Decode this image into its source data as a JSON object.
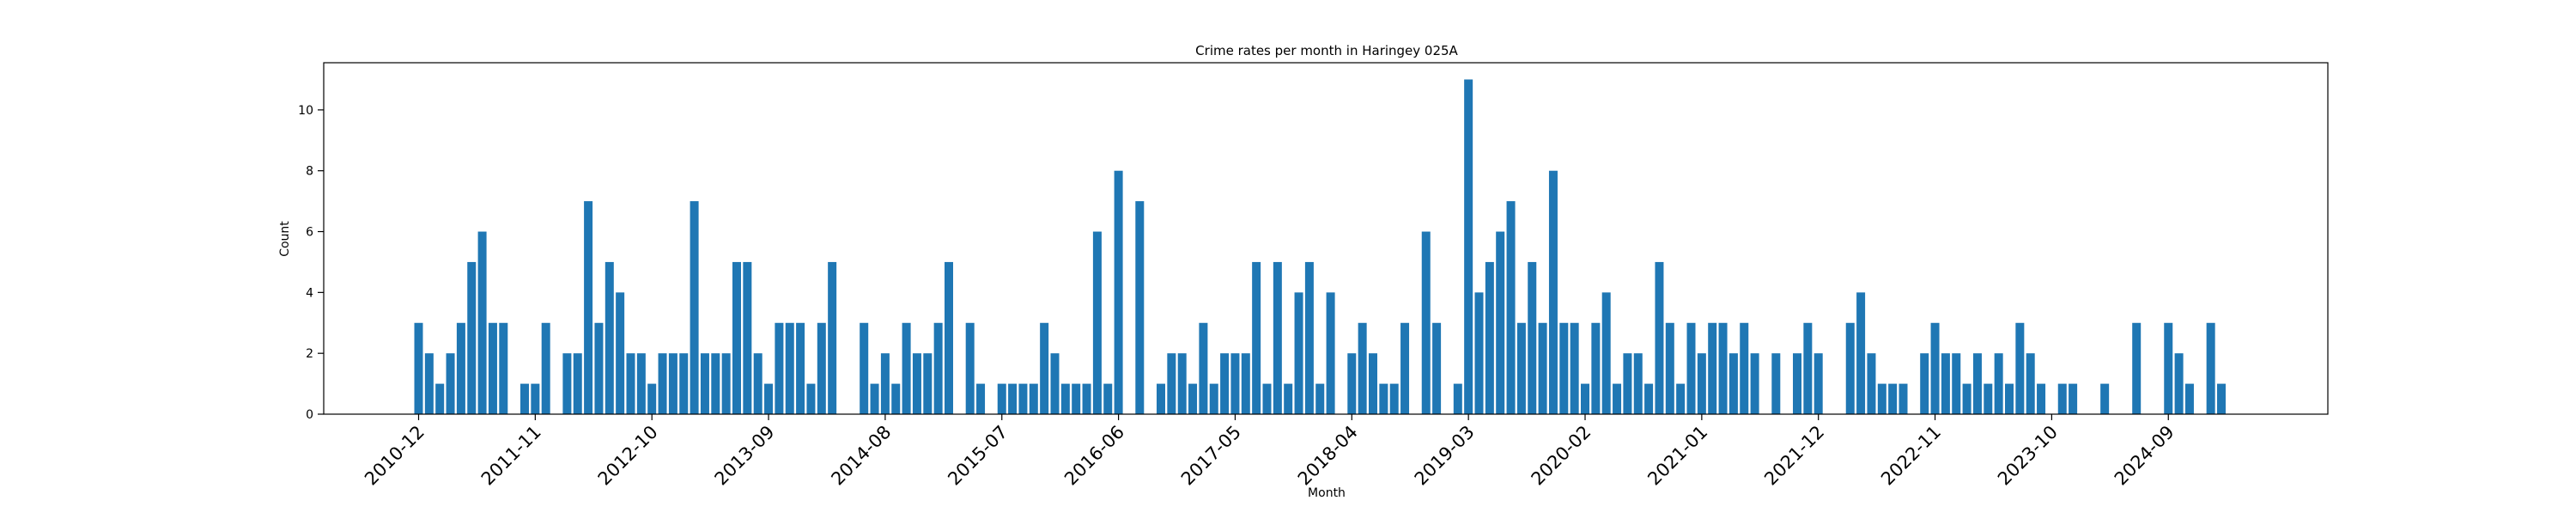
{
  "chart_data": {
    "type": "bar",
    "title": "Crime rates per month in Haringey 025A",
    "xlabel": "Month",
    "ylabel": "Count",
    "ylim": [
      0,
      11.55
    ],
    "yticks": [
      0,
      2,
      4,
      6,
      8,
      10
    ],
    "grid": false,
    "legend": "none",
    "bar_color": "#1f77b4",
    "xtick_labels": [
      {
        "category_index": 0,
        "label": "2010-12"
      },
      {
        "category_index": 11,
        "label": "2011-11"
      },
      {
        "category_index": 22,
        "label": "2012-10"
      },
      {
        "category_index": 33,
        "label": "2013-09"
      },
      {
        "category_index": 44,
        "label": "2014-08"
      },
      {
        "category_index": 55,
        "label": "2015-07"
      },
      {
        "category_index": 66,
        "label": "2016-06"
      },
      {
        "category_index": 77,
        "label": "2017-05"
      },
      {
        "category_index": 88,
        "label": "2018-04"
      },
      {
        "category_index": 99,
        "label": "2019-03"
      },
      {
        "category_index": 110,
        "label": "2020-02"
      },
      {
        "category_index": 121,
        "label": "2021-01"
      },
      {
        "category_index": 132,
        "label": "2021-12"
      },
      {
        "category_index": 143,
        "label": "2022-11"
      },
      {
        "category_index": 154,
        "label": "2023-10"
      },
      {
        "category_index": 165,
        "label": "2024-09"
      }
    ],
    "categories": [
      "2010-12",
      "2011-01",
      "2011-02",
      "2011-03",
      "2011-04",
      "2011-05",
      "2011-06",
      "2011-07",
      "2011-08",
      "2011-09",
      "2011-10",
      "2011-11",
      "2011-12",
      "2012-01",
      "2012-02",
      "2012-03",
      "2012-04",
      "2012-05",
      "2012-06",
      "2012-07",
      "2012-08",
      "2012-09",
      "2012-10",
      "2012-11",
      "2012-12",
      "2013-01",
      "2013-02",
      "2013-03",
      "2013-04",
      "2013-05",
      "2013-06",
      "2013-07",
      "2013-08",
      "2013-09",
      "2013-10",
      "2013-11",
      "2013-12",
      "2014-01",
      "2014-02",
      "2014-03",
      "2014-04",
      "2014-05",
      "2014-06",
      "2014-07",
      "2014-08",
      "2014-09",
      "2014-10",
      "2014-11",
      "2014-12",
      "2015-01",
      "2015-02",
      "2015-03",
      "2015-04",
      "2015-05",
      "2015-06",
      "2015-07",
      "2015-08",
      "2015-09",
      "2015-10",
      "2015-11",
      "2015-12",
      "2016-01",
      "2016-02",
      "2016-03",
      "2016-04",
      "2016-05",
      "2016-06",
      "2016-07",
      "2016-08",
      "2016-09",
      "2016-10",
      "2016-11",
      "2016-12",
      "2017-01",
      "2017-02",
      "2017-03",
      "2017-04",
      "2017-05",
      "2017-06",
      "2017-07",
      "2017-08",
      "2017-09",
      "2017-10",
      "2017-11",
      "2017-12",
      "2018-01",
      "2018-02",
      "2018-03",
      "2018-04",
      "2018-05",
      "2018-06",
      "2018-07",
      "2018-08",
      "2018-09",
      "2018-10",
      "2018-11",
      "2018-12",
      "2019-01",
      "2019-02",
      "2019-03",
      "2019-04",
      "2019-05",
      "2019-06",
      "2019-07",
      "2019-08",
      "2019-09",
      "2019-10",
      "2019-11",
      "2019-12",
      "2020-01",
      "2020-02",
      "2020-03",
      "2020-04",
      "2020-05",
      "2020-06",
      "2020-07",
      "2020-08",
      "2020-09",
      "2020-10",
      "2020-11",
      "2020-12",
      "2021-01",
      "2021-02",
      "2021-03",
      "2021-04",
      "2021-05",
      "2021-06",
      "2021-07",
      "2021-08",
      "2021-09",
      "2021-10",
      "2021-11",
      "2021-12",
      "2022-01",
      "2022-02",
      "2022-03",
      "2022-04",
      "2022-05",
      "2022-06",
      "2022-07",
      "2022-08",
      "2022-09",
      "2022-10",
      "2022-11",
      "2022-12",
      "2023-01",
      "2023-02",
      "2023-03",
      "2023-04",
      "2023-05",
      "2023-06",
      "2023-07",
      "2023-08",
      "2023-09",
      "2023-10",
      "2023-11",
      "2023-12",
      "2024-01",
      "2024-02",
      "2024-03",
      "2024-04",
      "2024-05",
      "2024-06",
      "2024-07",
      "2024-08",
      "2024-09",
      "2024-10",
      "2024-11",
      "2024-12",
      "2025-01",
      "2025-02"
    ],
    "values": [
      3,
      2,
      1,
      2,
      3,
      5,
      6,
      3,
      3,
      0,
      1,
      1,
      3,
      0,
      2,
      2,
      7,
      3,
      5,
      4,
      2,
      2,
      1,
      2,
      2,
      2,
      7,
      2,
      2,
      2,
      5,
      5,
      2,
      1,
      3,
      3,
      3,
      1,
      3,
      5,
      0,
      0,
      3,
      1,
      2,
      1,
      3,
      2,
      2,
      3,
      5,
      0,
      3,
      1,
      0,
      1,
      1,
      1,
      1,
      3,
      2,
      1,
      1,
      1,
      6,
      1,
      8,
      0,
      7,
      0,
      1,
      2,
      2,
      1,
      3,
      1,
      2,
      2,
      2,
      5,
      1,
      5,
      1,
      4,
      5,
      1,
      4,
      0,
      2,
      3,
      2,
      1,
      1,
      3,
      0,
      6,
      3,
      0,
      1,
      11,
      4,
      5,
      6,
      7,
      3,
      5,
      3,
      8,
      3,
      3,
      1,
      3,
      4,
      1,
      2,
      2,
      1,
      5,
      3,
      1,
      3,
      2,
      3,
      3,
      2,
      3,
      2,
      0,
      2,
      0,
      2,
      3,
      2,
      0,
      0,
      3,
      4,
      2,
      1,
      1,
      1,
      0,
      2,
      3,
      2,
      2,
      1,
      2,
      1,
      2,
      1,
      3,
      2,
      1,
      0,
      1,
      1,
      0,
      0,
      1,
      0,
      0,
      3,
      0,
      0,
      3,
      2,
      1,
      0,
      3,
      1
    ]
  }
}
